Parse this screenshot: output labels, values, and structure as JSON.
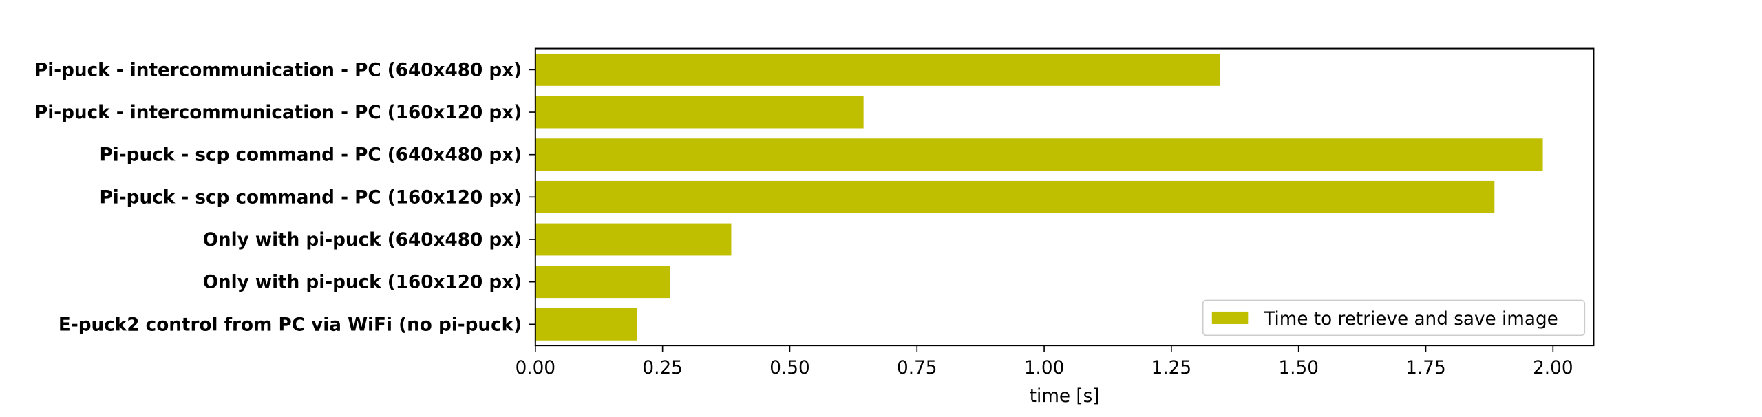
{
  "chart_data": {
    "type": "bar",
    "orientation": "horizontal",
    "categories": [
      "Pi-puck - intercommunication - PC (640x480 px)",
      "Pi-puck - intercommunication - PC (160x120 px)",
      "Pi-puck - scp command - PC (640x480 px)",
      "Pi-puck - scp command - PC (160x120 px)",
      "Only with pi-puck (640x480 px)",
      "Only with pi-puck (160x120 px)",
      "E-puck2 control from PC via WiFi (no pi-puck)"
    ],
    "series": [
      {
        "name": "Time to retrieve and save image",
        "values": [
          1.345,
          0.645,
          1.98,
          1.885,
          0.385,
          0.265,
          0.2
        ],
        "color": "#bfbf00"
      }
    ],
    "xlabel": "time [s]",
    "ylabel": "",
    "xlim": [
      0,
      2.08
    ],
    "xticks": [
      "0.00",
      "0.25",
      "0.50",
      "0.75",
      "1.00",
      "1.25",
      "1.50",
      "1.75",
      "2.00"
    ],
    "xtick_values": [
      0,
      0.25,
      0.5,
      0.75,
      1.0,
      1.25,
      1.5,
      1.75,
      2.0
    ],
    "legend_position": "bottom-right",
    "grid": false
  }
}
